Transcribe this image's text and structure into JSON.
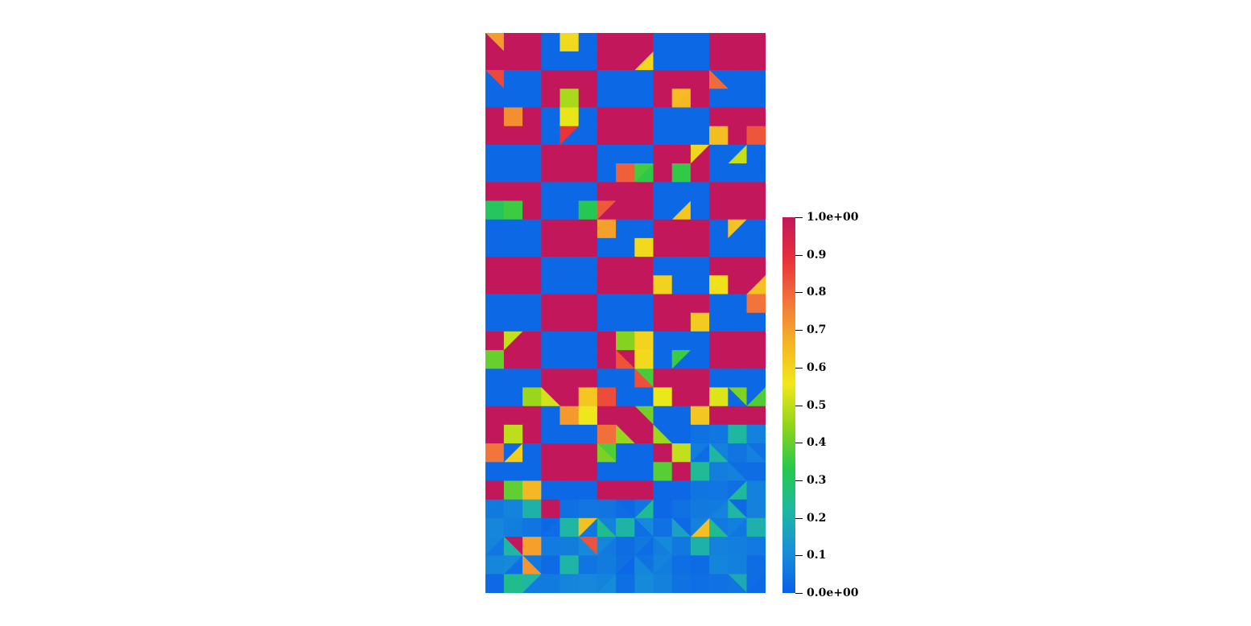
{
  "plot": {
    "scalar_range": [
      0,
      1
    ],
    "mesh": "triangulated quadrilateral cells",
    "dominant_values": [
      0.0,
      1.0
    ]
  },
  "colorbar": {
    "colormap": "rainbow",
    "colors": [
      "#0a5fe8",
      "#1890d8",
      "#1fb8a0",
      "#28c94a",
      "#8fd41c",
      "#f0e81a",
      "#f5b325",
      "#f2743a",
      "#e8303a",
      "#c2185b"
    ],
    "tick_labels": [
      "1.0e+00",
      "0.9",
      "0.8",
      "0.7",
      "0.6",
      "0.5",
      "0.4",
      "0.3",
      "0.2",
      "0.1",
      "0.0e+00"
    ]
  }
}
